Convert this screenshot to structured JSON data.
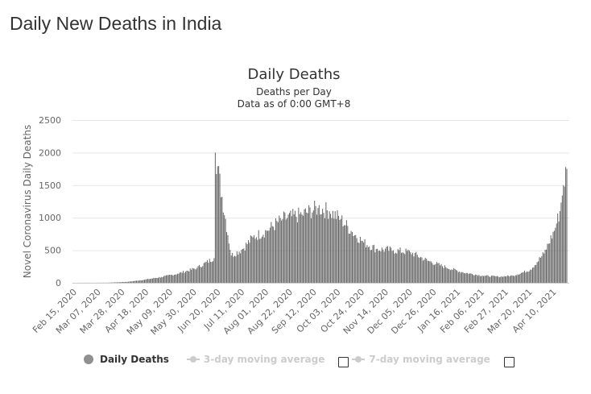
{
  "page": {
    "title": "Daily New Deaths in India"
  },
  "chart_data": {
    "type": "bar",
    "title": "Daily Deaths",
    "subtitle": "Deaths per Day",
    "note": "Data as of 0:00 GMT+8",
    "ylabel": "Novel Coronavirus Daily Deaths",
    "xlabel": "",
    "ylim": [
      0,
      2500
    ],
    "yticks": [
      0,
      500,
      1000,
      1500,
      2000,
      2500
    ],
    "grid": true,
    "legend_position": "bottom",
    "colors": {
      "bars": "#666666",
      "grid": "#e6e6e6",
      "axis": "#cccccc",
      "inactive": "#cccccc"
    },
    "x_tick_labels": [
      "Feb 15, 2020",
      "Mar 07, 2020",
      "Mar 28, 2020",
      "Apr 18, 2020",
      "May 09, 2020",
      "May 30, 2020",
      "Jun 20, 2020",
      "Jul 11, 2020",
      "Aug 01, 2020",
      "Aug 22, 2020",
      "Sep 12, 2020",
      "Oct 03, 2020",
      "Oct 24, 2020",
      "Nov 14, 2020",
      "Dec 05, 2020",
      "Dec 26, 2020",
      "Jan 16, 2021",
      "Feb 06, 2021",
      "Feb 27, 2021",
      "Mar 20, 2021",
      "Apr 10, 2021"
    ],
    "x_start": "Feb 15, 2020",
    "x_end": "Apr 21, 2021",
    "series": [
      {
        "name": "Daily Deaths",
        "dates": [
          "Feb 15, 2020",
          "Mar 15, 2020",
          "Apr 01, 2020",
          "Apr 15, 2020",
          "May 01, 2020",
          "May 15, 2020",
          "Jun 01, 2020",
          "Jun 16, 2020",
          "Jun 17, 2020",
          "Jul 01, 2020",
          "Jul 11, 2020",
          "Jul 20, 2020",
          "Aug 01, 2020",
          "Aug 15, 2020",
          "Sep 01, 2020",
          "Sep 15, 2020",
          "Sep 25, 2020",
          "Oct 05, 2020",
          "Oct 15, 2020",
          "Oct 25, 2020",
          "Nov 05, 2020",
          "Nov 20, 2020",
          "Dec 05, 2020",
          "Dec 20, 2020",
          "Jan 05, 2021",
          "Jan 20, 2021",
          "Feb 06, 2021",
          "Feb 20, 2021",
          "Mar 05, 2021",
          "Mar 20, 2021",
          "Apr 01, 2021",
          "Apr 10, 2021",
          "Apr 15, 2021",
          "Apr 18, 2021",
          "Apr 21, 2021"
        ],
        "values": [
          0,
          2,
          15,
          45,
          90,
          140,
          230,
          380,
          2000,
          420,
          520,
          700,
          800,
          980,
          1050,
          1150,
          1100,
          980,
          780,
          620,
          520,
          500,
          470,
          340,
          240,
          160,
          110,
          95,
          110,
          200,
          450,
          800,
          1100,
          1500,
          1750
        ]
      },
      {
        "name": "3-day moving average",
        "active": false
      },
      {
        "name": "7-day moving average",
        "active": false
      }
    ]
  }
}
